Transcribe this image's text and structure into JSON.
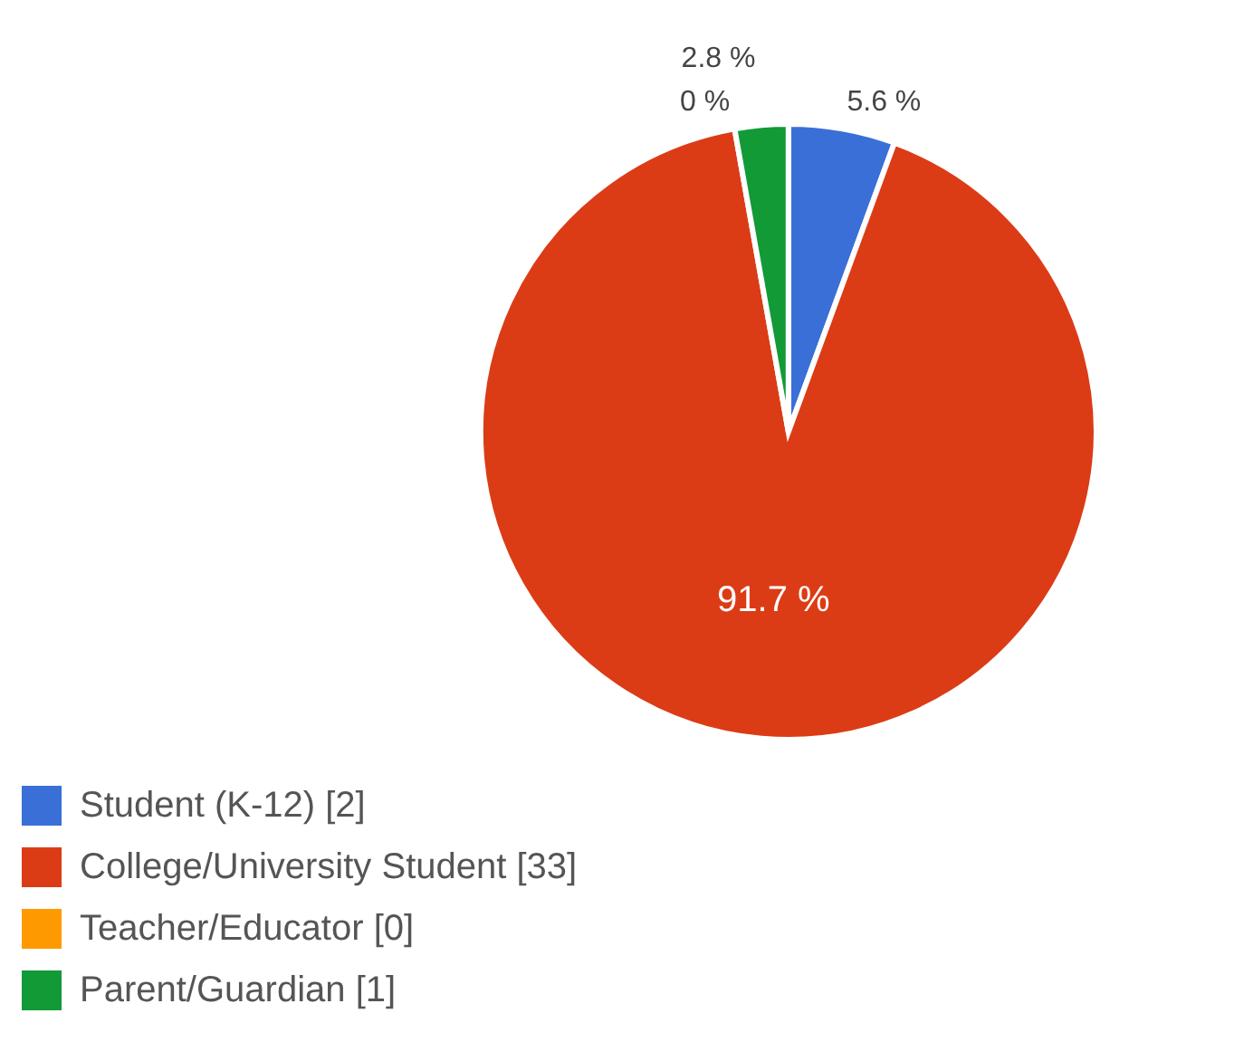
{
  "chart_data": {
    "type": "pie",
    "categories": [
      "Student (K-12)  [2]",
      "College/University Student  [33]",
      "Teacher/Educator  [0]",
      "Parent/Guardian  [1]"
    ],
    "values": [
      5.6,
      91.7,
      0,
      2.8
    ],
    "colors": [
      "#3b6fd8",
      "#db3c16",
      "#ff9900",
      "#129a37"
    ],
    "value_labels": [
      "5.6 %",
      "91.7 %",
      "0 %",
      "2.8 %"
    ],
    "legend": "bottom left"
  }
}
